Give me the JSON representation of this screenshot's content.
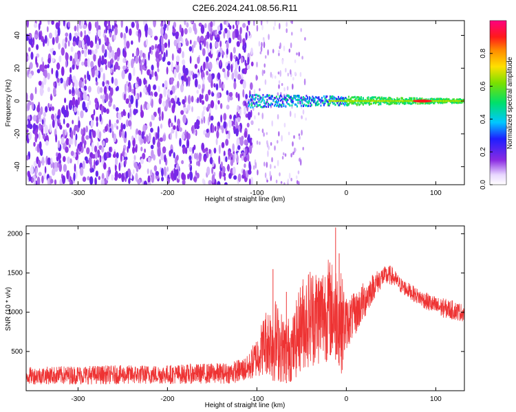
{
  "title": "C2E6.2024.241.08.56.R11",
  "chart_data": [
    {
      "type": "heatmap",
      "xlabel": "Height of straight line (km)",
      "ylabel": "Frequency (Hz)",
      "xlim": [
        -358,
        132
      ],
      "ylim": [
        -51,
        49
      ],
      "xticks": [
        -300,
        -200,
        -100,
        0,
        100
      ],
      "yticks": [
        -40,
        -20,
        0,
        20,
        40
      ],
      "colorbar": {
        "label": "Normalized spectral amplitude",
        "range": [
          0,
          1
        ],
        "ticks": [
          0.0,
          0.2,
          0.4,
          0.6,
          0.8
        ],
        "tick_labels": [
          "0.0",
          "0.2",
          "0.4",
          "0.6",
          "0.8"
        ],
        "colormap": "rainbow (white-violet-blue-cyan-green-yellow-red-magenta)"
      },
      "features": [
        {
          "name": "broadband noise region",
          "x_range": [
            -358,
            -105
          ],
          "y_range": [
            -51,
            49
          ],
          "amplitude": [
            0.05,
            0.2
          ]
        },
        {
          "name": "narrowband signal near 0 Hz",
          "x_range": [
            -110,
            132
          ],
          "y_center": 0,
          "peak_amplitude": 0.9,
          "peak_x": 85
        }
      ]
    },
    {
      "type": "line",
      "xlabel": "Height of straight line (km)",
      "ylabel": "SNR (10 * v/v)",
      "xlim": [
        -358,
        132
      ],
      "ylim": [
        0,
        2100
      ],
      "xticks": [
        -300,
        -200,
        -100,
        0,
        100
      ],
      "yticks": [
        500,
        1000,
        1500,
        2000
      ],
      "color": "#ee3333",
      "envelope": {
        "x": [
          -358,
          -300,
          -200,
          -130,
          -110,
          -100,
          -90,
          -80,
          -70,
          -60,
          -50,
          -40,
          -30,
          -20,
          -10,
          -5,
          0,
          10,
          20,
          30,
          40,
          50,
          60,
          80,
          100,
          120,
          132
        ],
        "y_low": [
          80,
          80,
          85,
          90,
          120,
          170,
          200,
          110,
          90,
          110,
          250,
          300,
          320,
          380,
          400,
          200,
          520,
          700,
          900,
          1150,
          1320,
          1350,
          1250,
          1100,
          950,
          900,
          880
        ],
        "y_high": [
          300,
          320,
          330,
          360,
          450,
          700,
          1050,
          1200,
          950,
          950,
          1450,
          1600,
          1600,
          1700,
          1600,
          1500,
          1200,
          1250,
          1400,
          1500,
          1580,
          1600,
          1450,
          1300,
          1200,
          1150,
          1100
        ]
      },
      "spikes": [
        {
          "x": -82,
          "y": 1550
        },
        {
          "x": -67,
          "y": 1260
        },
        {
          "x": -12,
          "y": 2080
        },
        {
          "x": -8,
          "y": 1750
        }
      ]
    }
  ]
}
